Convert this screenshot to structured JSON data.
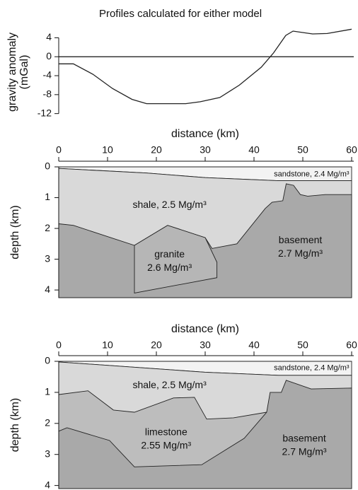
{
  "chart_data": [
    {
      "type": "line",
      "title": "Profiles calculated for either model",
      "y_label": [
        "gravity anomaly",
        "(mGal)"
      ],
      "x": [
        0,
        3,
        7,
        11,
        15,
        18,
        26,
        29,
        33,
        37,
        41.5,
        44,
        46.5,
        48,
        52,
        55,
        60
      ],
      "values": [
        -1.5,
        -1.5,
        -3.7,
        -6.7,
        -9,
        -9.9,
        -9.9,
        -9.5,
        -8.6,
        -6,
        -2.2,
        0.8,
        4.5,
        5.4,
        4.8,
        4.9,
        5.8
      ],
      "color": "#222222",
      "xlim": [
        0,
        60
      ],
      "ylim": [
        -12.5,
        6
      ],
      "yticks": [
        4,
        0,
        -4,
        -8,
        -12
      ],
      "reference_line": 0
    },
    {
      "type": "cross-section",
      "x_label": "distance (km)",
      "y_label": "depth (km)",
      "xlim": [
        0,
        60
      ],
      "ylim": [
        0,
        4.25
      ],
      "xticks": [
        0,
        10,
        20,
        30,
        40,
        50,
        60
      ],
      "yticks": [
        0,
        1,
        2,
        3,
        4
      ],
      "layers": [
        {
          "label": [
            "sandstone, 2.4 Mg/m³"
          ],
          "color": "#f3f3f3",
          "x": [
            0,
            60,
            60,
            45,
            30,
            18,
            0
          ],
          "depth": [
            0,
            0,
            0.45,
            0.45,
            0.35,
            0.2,
            0.05
          ]
        },
        {
          "label": [
            "shale, 2.5 Mg/m³"
          ],
          "color": "#d9d9d9",
          "x": [
            0,
            18,
            30,
            45,
            60,
            60,
            0
          ],
          "depth": [
            0.05,
            0.2,
            0.35,
            0.45,
            0.45,
            4.25,
            4.25
          ]
        },
        {
          "label": [
            "basement",
            "2.7 Mg/m³"
          ],
          "color": "#a9a9a9",
          "x": [
            0,
            3,
            15.5,
            22.3,
            30,
            31.4,
            36.5,
            42.3,
            43.7,
            45.9,
            46.6,
            48.1,
            49.5,
            51,
            54.6,
            60,
            60,
            0
          ],
          "depth": [
            1.85,
            1.9,
            2.55,
            1.9,
            2.3,
            2.65,
            2.5,
            1.35,
            1.15,
            1.1,
            0.55,
            0.6,
            0.9,
            0.95,
            0.9,
            0.9,
            4.25,
            4.25
          ]
        },
        {
          "label": [
            "granite",
            "2.6 Mg/m³"
          ],
          "color": "#b6b6b6",
          "x": [
            15.5,
            22.3,
            30,
            32.4,
            32.4,
            15.5
          ],
          "depth": [
            2.55,
            1.9,
            2.3,
            3.1,
            3.6,
            4.1
          ]
        }
      ]
    },
    {
      "type": "cross-section",
      "x_label": "distance (km)",
      "y_label": "depth (km)",
      "xlim": [
        0,
        60
      ],
      "ylim": [
        0,
        4.1
      ],
      "xticks": [
        0,
        10,
        20,
        30,
        40,
        50,
        60
      ],
      "yticks": [
        0,
        1,
        2,
        3,
        4
      ],
      "layers": [
        {
          "label": [
            "sandstone, 2.4 Mg/m³"
          ],
          "color": "#f3f3f3",
          "x": [
            0,
            60,
            60,
            45,
            30,
            0
          ],
          "depth": [
            0,
            0,
            0.45,
            0.45,
            0.35,
            0.02
          ]
        },
        {
          "label": [
            "shale, 2.5 Mg/m³"
          ],
          "color": "#d9d9d9",
          "x": [
            0,
            30,
            45,
            60,
            60,
            0
          ],
          "depth": [
            0.02,
            0.35,
            0.45,
            0.45,
            4.1,
            4.1
          ]
        },
        {
          "label": [
            "limestone",
            "2.55 Mg/m³"
          ],
          "color": "#bdbdbd",
          "x": [
            0,
            6,
            11.2,
            15.5,
            23.5,
            27.8,
            30.3,
            35.8,
            42.6,
            60,
            60,
            0
          ],
          "depth": [
            1.07,
            0.95,
            1.57,
            1.64,
            1.18,
            1.16,
            1.86,
            1.82,
            1.64,
            1.64,
            4.1,
            4.1
          ]
        },
        {
          "label": [
            "basement",
            "2.7 Mg/m³"
          ],
          "color": "#a9a9a9",
          "x": [
            0,
            1.7,
            10.4,
            15.5,
            29.3,
            38,
            42.6,
            43.3,
            45.6,
            46.6,
            51.7,
            60,
            60,
            0
          ],
          "depth": [
            2.25,
            2.14,
            2.55,
            3.4,
            3.33,
            2.48,
            1.64,
            1.0,
            1.0,
            0.61,
            0.89,
            0.86,
            4.1,
            4.1
          ]
        }
      ]
    }
  ]
}
